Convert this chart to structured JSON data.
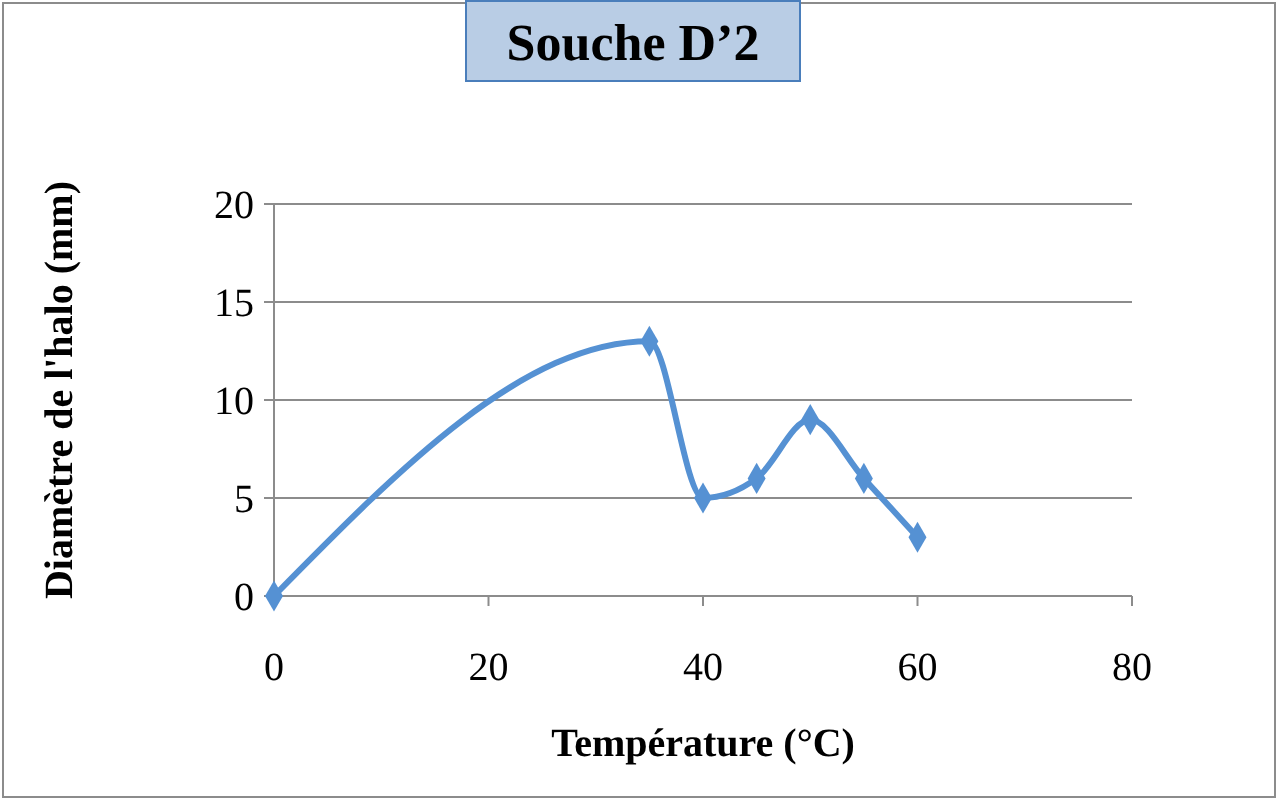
{
  "chart_data": {
    "type": "line",
    "title": "Souche D’2",
    "xlabel": "Température (°C)",
    "ylabel": "Diamètre de l'halo (mm)",
    "x": [
      0,
      35,
      40,
      45,
      50,
      55,
      60
    ],
    "series": [
      {
        "color": "#5591d3",
        "values": [
          0,
          13,
          5,
          6,
          9,
          6,
          3
        ]
      }
    ],
    "xlim": [
      0,
      80
    ],
    "xticks": [
      0,
      20,
      40,
      60,
      80
    ],
    "ylim": [
      0,
      20
    ],
    "yticks": [
      0,
      5,
      10,
      15,
      20
    ],
    "grid": "y",
    "marker": "diamond",
    "line_style": "solid"
  }
}
